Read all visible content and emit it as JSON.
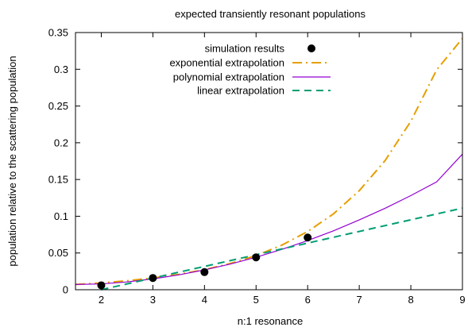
{
  "chart_data": {
    "type": "line",
    "title": "expected transiently resonant populations",
    "xlabel": "n:1 resonance",
    "ylabel": "population relative to the scattering population",
    "xlim": [
      1.5,
      9
    ],
    "ylim": [
      0,
      0.35
    ],
    "xticks": [
      2,
      3,
      4,
      5,
      6,
      7,
      8,
      9
    ],
    "yticks": [
      0,
      0.05,
      0.1,
      0.15,
      0.2,
      0.25,
      0.3,
      0.35
    ],
    "ytick_labels": [
      "0",
      "0.05",
      "0.1",
      "0.15",
      "0.2",
      "0.25",
      "0.3",
      "0.35"
    ],
    "grid": false,
    "legend_position": "top-right",
    "series": [
      {
        "name": "simulation results",
        "style": "points",
        "color": "#000000",
        "x": [
          2,
          3,
          4,
          5,
          6
        ],
        "y": [
          0.006,
          0.016,
          0.024,
          0.044,
          0.071
        ]
      },
      {
        "name": "exponential extrapolation",
        "style": "dash-dot",
        "color": "#e69f00",
        "x": [
          1.5,
          2,
          2.5,
          3,
          3.5,
          4,
          4.5,
          5,
          5.5,
          6,
          6.5,
          7,
          7.5,
          8,
          8.5,
          9
        ],
        "y": [
          0.0071,
          0.0093,
          0.0122,
          0.016,
          0.0209,
          0.0273,
          0.0357,
          0.0466,
          0.0607,
          0.0792,
          0.1033,
          0.1347,
          0.1757,
          0.2293,
          0.2992,
          0.342
        ]
      },
      {
        "name": "polynomial extrapolation",
        "style": "solid",
        "color": "#9400d3",
        "x": [
          1.5,
          2,
          2.5,
          3,
          3.5,
          4,
          4.5,
          5,
          5.5,
          6,
          6.5,
          7,
          7.5,
          8,
          8.5,
          9
        ],
        "y": [
          0.0071,
          0.0079,
          0.0106,
          0.0147,
          0.0202,
          0.0269,
          0.0349,
          0.0442,
          0.0549,
          0.0669,
          0.0802,
          0.0949,
          0.1108,
          0.1281,
          0.1467,
          0.1845
        ]
      },
      {
        "name": "linear extrapolation",
        "style": "dashed",
        "color": "#009e73",
        "x": [
          2,
          9
        ],
        "y": [
          0.0,
          0.111
        ]
      }
    ]
  }
}
